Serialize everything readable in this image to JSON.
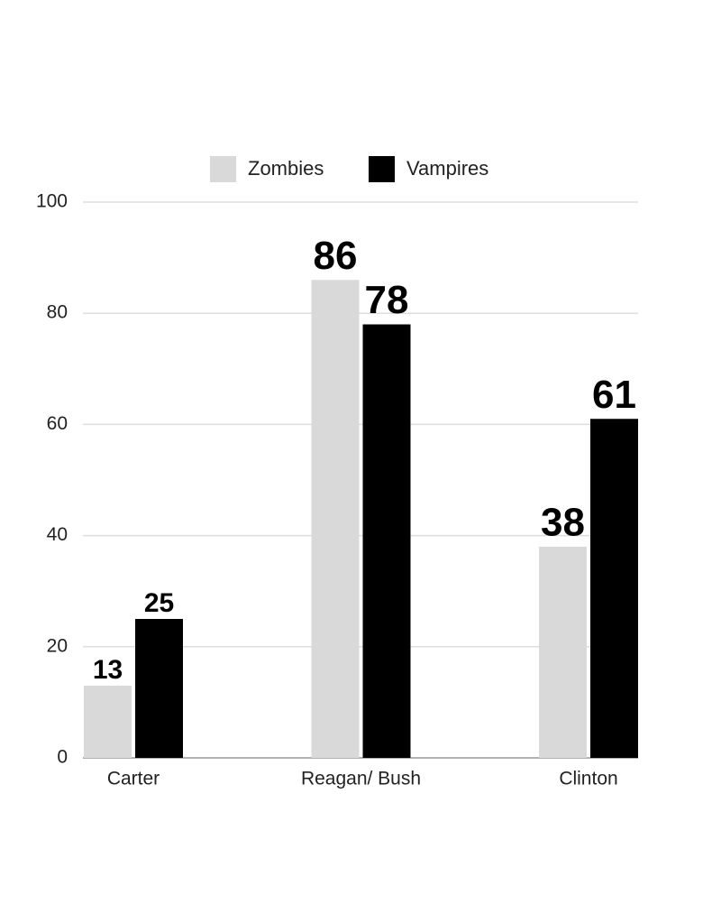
{
  "chart_data": {
    "type": "bar",
    "categories": [
      "Carter",
      "Reagan/ Bush",
      "Clinton"
    ],
    "series": [
      {
        "name": "Zombies",
        "color": "#d9d9d9",
        "values": [
          13,
          86,
          38
        ]
      },
      {
        "name": "Vampires",
        "color": "#000000",
        "values": [
          25,
          78,
          61
        ]
      }
    ],
    "ylim": [
      0,
      100
    ],
    "yticks": [
      0,
      20,
      40,
      60,
      80,
      100
    ],
    "grid": true
  }
}
